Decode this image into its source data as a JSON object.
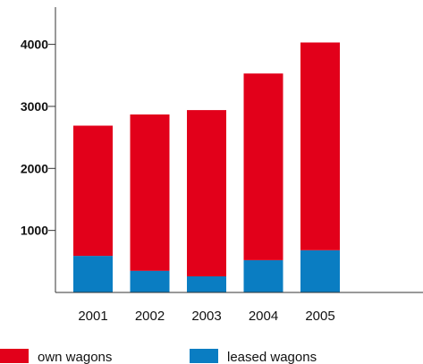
{
  "chart_data": {
    "type": "bar",
    "stacked": true,
    "title": "",
    "xlabel": "",
    "ylabel": "",
    "categories": [
      "2001",
      "2002",
      "2003",
      "2004",
      "2005"
    ],
    "series": [
      {
        "name": "leased wagons",
        "values": [
          590,
          350,
          260,
          520,
          680
        ],
        "color": "#0a7dc2"
      },
      {
        "name": "own wagons",
        "values": [
          2100,
          2520,
          2680,
          3010,
          3350
        ],
        "color": "#e2001a"
      }
    ],
    "ylim": [
      0,
      4600
    ],
    "yticks": [
      1000,
      2000,
      3000,
      4000
    ],
    "ytick_labels": [
      "1000",
      "2000",
      "3000",
      "4000"
    ],
    "grid": false,
    "legend": {
      "placement": "bottom",
      "entries": [
        "own wagons",
        "leased wagons"
      ]
    }
  }
}
